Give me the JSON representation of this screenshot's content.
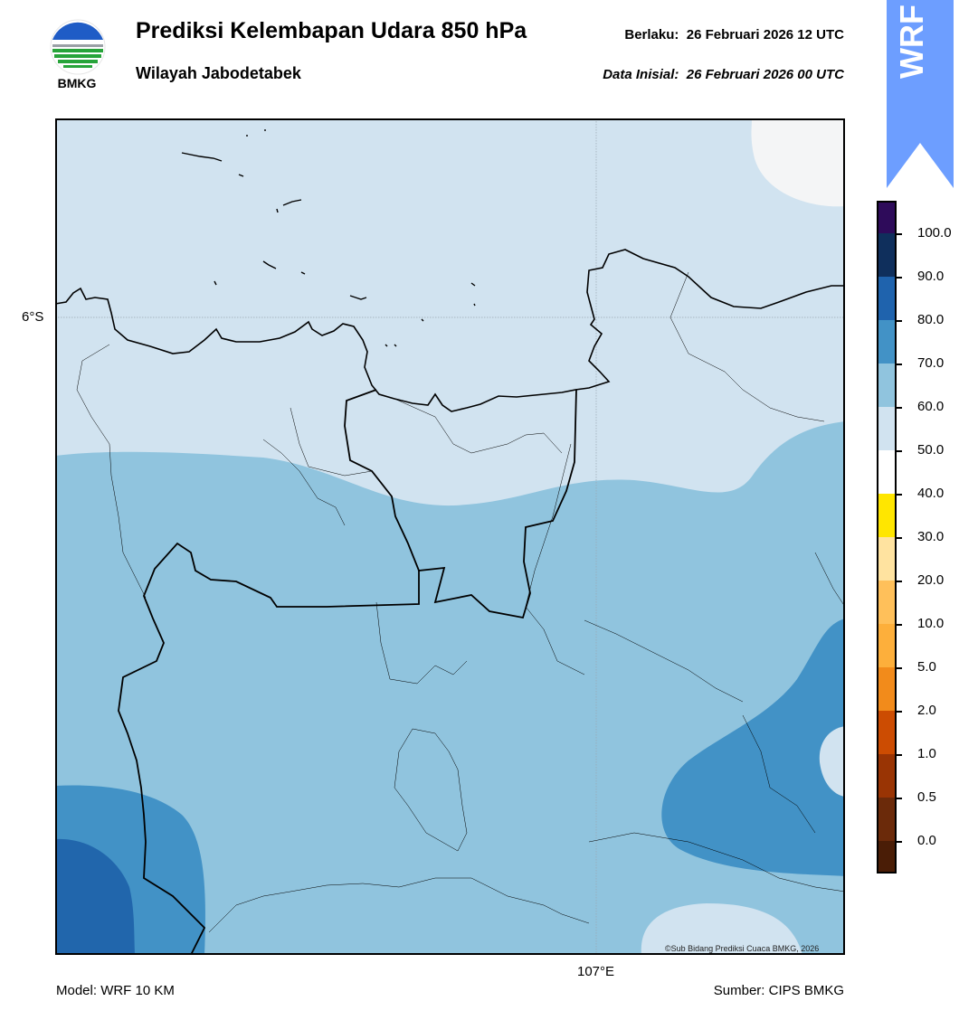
{
  "header": {
    "title": "Prediksi Kelembapan Udara 850 hPa",
    "subtitle": "Wilayah Jabodetabek",
    "valid_label": "Berlaku:",
    "valid_time": "26 Februari 2026 12 UTC",
    "init_label": "Data Inisial:",
    "init_time": "26 Februari 2026 00 UTC"
  },
  "logo": {
    "text": "BMKG"
  },
  "badge": {
    "text": "WRF",
    "color": "#6d9eff"
  },
  "map": {
    "lat_label": "6°S",
    "lon_label": "107°E",
    "copyright": "©Sub Bidang Prediksi Cuaca BMKG, 2026"
  },
  "footer": {
    "model": "Model: WRF 10 KM",
    "source": "Sumber: CIPS BMKG"
  },
  "colorbar": {
    "labels": [
      "100.0",
      "90.0",
      "80.0",
      "70.0",
      "60.0",
      "50.0",
      "40.0",
      "30.0",
      "20.0",
      "10.0",
      "5.0",
      "2.0",
      "1.0",
      "0.5",
      "0.0"
    ],
    "colors": [
      "#2e0b5a",
      "#0f2f5c",
      "#1f63ad",
      "#4292c6",
      "#90c4de",
      "#d1e3f0",
      "#ffffff",
      "#ffe600",
      "#ffe3a0",
      "#ffc05a",
      "#fdaf3b",
      "#f28b1b",
      "#cc4c02",
      "#993404",
      "#6b2a0a",
      "#4a1d06",
      "#a51214",
      "#e2332a"
    ]
  },
  "legend_colors": {
    "very_light": "#f4f5f6",
    "light": "#d1e3f0",
    "medium": "#90c4de",
    "dark": "#4292c6",
    "darker": "#2166ac"
  }
}
